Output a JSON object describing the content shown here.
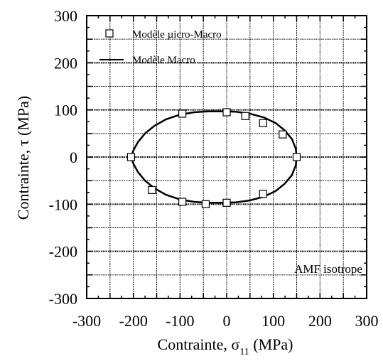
{
  "chart_data": {
    "type": "scatter",
    "xlabel": "Contrainte, σ11 (MPa)",
    "xlabel_parts": {
      "pre": "Contrainte, σ",
      "sub": "11",
      "post": " (MPa)"
    },
    "ylabel": "Contrainte, τ (MPa)",
    "xlim": [
      -300,
      300
    ],
    "ylim": [
      -300,
      300
    ],
    "xticks": [
      -300,
      -200,
      -100,
      0,
      100,
      200,
      300
    ],
    "yticks": [
      -300,
      -200,
      -100,
      0,
      100,
      200,
      300
    ],
    "grid": true,
    "legend_position": "top-left",
    "annotation": "AMF isotrope",
    "series": [
      {
        "name": "Modèle µicro-Macro",
        "marker": "open-square",
        "x": [
          150,
          120,
          78,
          40,
          0,
          -95,
          -205,
          -160,
          -95,
          -45,
          0,
          78
        ],
        "y": [
          0,
          48,
          72,
          87,
          95,
          92,
          0,
          -70,
          -95,
          -100,
          -97,
          -78
        ]
      },
      {
        "name": "Modèle Macro",
        "line": "solid",
        "x": [
          150,
          148,
          140,
          125,
          105,
          80,
          50,
          20,
          -10,
          -40,
          -70,
          -100,
          -130,
          -155,
          -175,
          -190,
          -200,
          -205,
          -200,
          -190,
          -175,
          -155,
          -130,
          -100,
          -70,
          -40,
          -10,
          20,
          50,
          80,
          105,
          125,
          140,
          148,
          150
        ],
        "y": [
          0,
          18,
          38,
          56,
          72,
          84,
          92,
          96,
          97,
          97,
          95,
          90,
          80,
          66,
          50,
          32,
          14,
          0,
          -14,
          -32,
          -50,
          -66,
          -80,
          -90,
          -95,
          -97,
          -97,
          -96,
          -92,
          -84,
          -72,
          -56,
          -38,
          -18,
          0
        ]
      }
    ]
  }
}
